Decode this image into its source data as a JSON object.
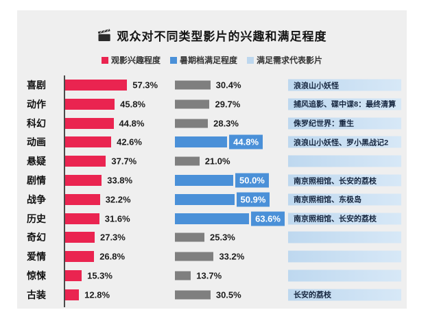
{
  "title": "观众对不同类型影片的兴趣和满足程度",
  "icons": {
    "title_icon": "clapperboard-icon"
  },
  "colors": {
    "card_bg": "#efefef",
    "page_bg": "#ffffff",
    "interest_bar": "#ea2450",
    "satisfaction_bar_normal": "#7f7f7f",
    "satisfaction_bar_highlight": "#4a90d8",
    "film_band": "#c3dcf0",
    "axis_line": "#4a4a4a"
  },
  "legend": [
    {
      "label": "观影兴趣程度",
      "color": "#ea2450"
    },
    {
      "label": "暑期档满足程度",
      "color": "#4a90d8"
    },
    {
      "label": "满足需求代表影片",
      "color": "#bdd7ee"
    }
  ],
  "chart_data": {
    "type": "bar",
    "orientation": "horizontal",
    "title": "观众对不同类型影片的兴趣和满足程度",
    "categories": [
      "喜剧",
      "动作",
      "科幻",
      "动画",
      "悬疑",
      "剧情",
      "战争",
      "历史",
      "奇幻",
      "爱情",
      "惊悚",
      "古装"
    ],
    "series": [
      {
        "name": "观影兴趣程度",
        "unit": "%",
        "color": "#ea2450",
        "values": [
          57.3,
          45.8,
          44.8,
          42.6,
          37.7,
          33.8,
          32.2,
          31.6,
          27.3,
          26.8,
          15.3,
          12.8
        ]
      },
      {
        "name": "暑期档满足程度",
        "unit": "%",
        "color_normal": "#7f7f7f",
        "color_highlight": "#4a90d8",
        "values": [
          30.4,
          29.7,
          28.3,
          44.8,
          21.0,
          50.0,
          50.9,
          63.6,
          25.3,
          33.2,
          13.7,
          30.5
        ],
        "highlighted": [
          false,
          false,
          false,
          true,
          false,
          true,
          true,
          true,
          false,
          false,
          false,
          false
        ]
      }
    ],
    "films": [
      "浪浪山小妖怪",
      "捕风追影、碟中谍8：最终清算",
      "侏罗纪世界：重生",
      "浪浪山小妖怪、罗小黑战记2",
      "",
      "南京照相馆、长安的荔枝",
      "南京照相馆、东极岛",
      "南京照相馆、长安的荔枝",
      "",
      "",
      "",
      "长安的荔枝"
    ],
    "xlim": [
      0,
      70
    ],
    "grid": false,
    "legend_position": "top"
  }
}
